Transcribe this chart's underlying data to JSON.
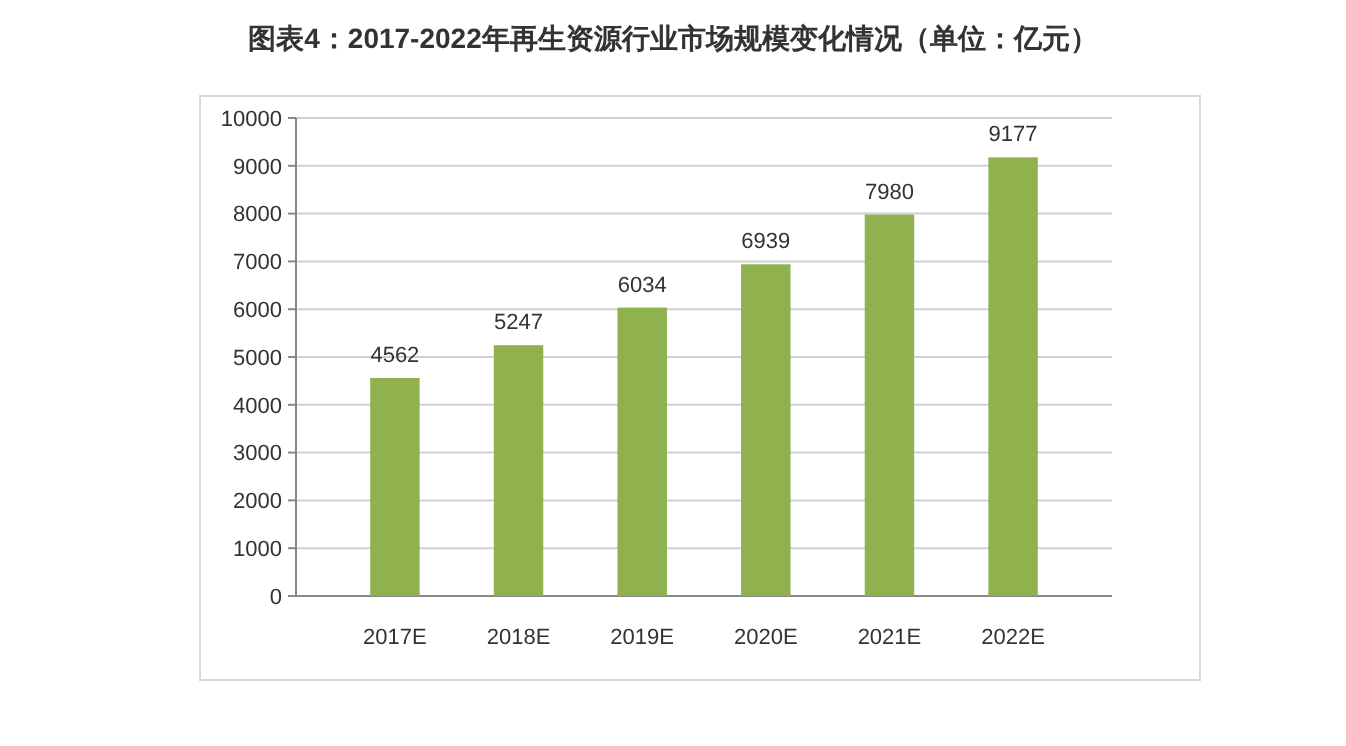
{
  "chart_data": {
    "type": "bar",
    "title": "图表4：2017-2022年再生资源行业市场规模变化情况（单位：亿元）",
    "categories": [
      "2017E",
      "2018E",
      "2019E",
      "2020E",
      "2021E",
      "2022E"
    ],
    "values": [
      4562,
      5247,
      6034,
      6939,
      7980,
      9177
    ],
    "color": "#8fb14e",
    "ylim": [
      0,
      10000
    ],
    "yticks": [
      0,
      1000,
      2000,
      3000,
      4000,
      5000,
      6000,
      7000,
      8000,
      9000,
      10000
    ],
    "grid": "y",
    "data_labels": true
  }
}
